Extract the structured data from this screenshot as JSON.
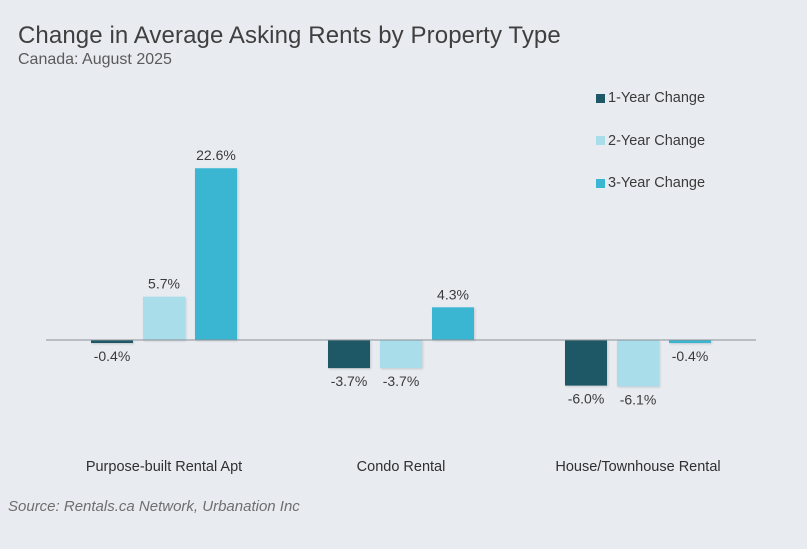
{
  "title": "Change in Average Asking Rents by Property Type",
  "subtitle": "Canada: August 2025",
  "source": "Source: Rentals.ca Network, Urbanation Inc",
  "colors": {
    "background": "#e8ecf1",
    "one_year": "#1e5866",
    "two_year": "#a8dde9",
    "three_year": "#3ab6d3",
    "axis": "#8a9096"
  },
  "chart_data": {
    "type": "bar",
    "categories": [
      "Purpose-built Rental Apt",
      "Condo Rental",
      "House/Townhouse Rental"
    ],
    "series": [
      {
        "name": "1-Year Change",
        "values": [
          -0.4,
          -3.7,
          -6.0
        ],
        "labels": [
          "-0.4%",
          "-3.7%",
          "-6.0%"
        ]
      },
      {
        "name": "2-Year Change",
        "values": [
          5.7,
          -3.7,
          -6.1
        ],
        "labels": [
          "5.7%",
          "-3.7%",
          "-6.1%"
        ]
      },
      {
        "name": "3-Year Change",
        "values": [
          22.6,
          4.3,
          -0.4
        ],
        "labels": [
          "22.6%",
          "4.3%",
          "-0.4%"
        ]
      }
    ],
    "legend_position": "top-right",
    "grid": false
  }
}
